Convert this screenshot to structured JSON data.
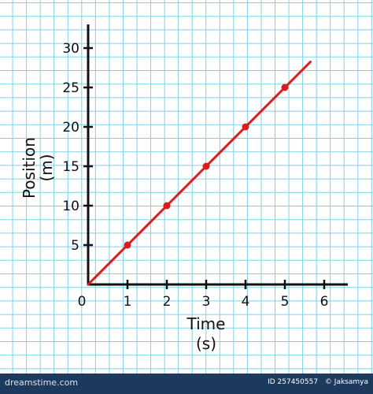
{
  "chart_data": {
    "type": "line",
    "xlabel": "Time",
    "xunit": "(s)",
    "ylabel": "Position",
    "yunit": "(m)",
    "x_ticks": [
      0,
      1,
      2,
      3,
      4,
      5,
      6
    ],
    "y_ticks": [
      5,
      10,
      15,
      20,
      25,
      30
    ],
    "xlim": [
      0,
      6.6
    ],
    "ylim": [
      0,
      33
    ],
    "grid": true,
    "points": [
      {
        "x": 1,
        "y": 5
      },
      {
        "x": 2,
        "y": 10
      },
      {
        "x": 3,
        "y": 15
      },
      {
        "x": 4,
        "y": 20
      },
      {
        "x": 5,
        "y": 25
      }
    ],
    "line": {
      "x": [
        0,
        5.65
      ],
      "y": [
        0,
        28.25
      ]
    },
    "colors": {
      "line": "#d91c1c",
      "grid": "#7fd1e8",
      "axis": "#111111"
    }
  },
  "footer": {
    "left_text": "dreamstime.com",
    "id_text": "ID 257450557",
    "author_text": "© Jaksamya"
  }
}
